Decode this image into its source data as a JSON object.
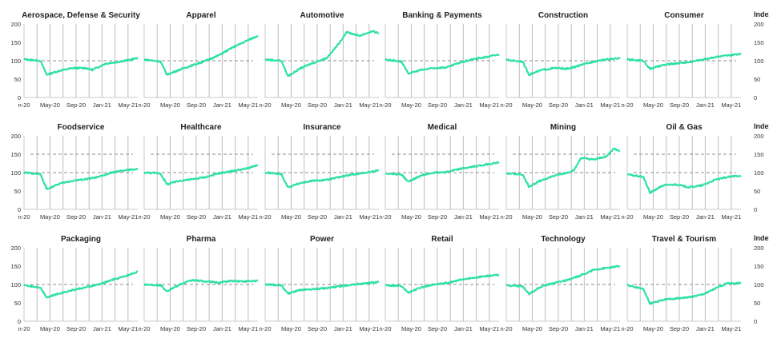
{
  "axis_labels": {
    "y_ticks": [
      "0",
      "50",
      "100",
      "150",
      "200"
    ],
    "x_ticks": [
      "n-20",
      "May-20",
      "Sep-20",
      "Jan-21",
      "May-21"
    ],
    "right_title": "Index"
  },
  "colors": {
    "line": "#2ee0a8",
    "grid": "#bdbdbd",
    "ref": "#8c8c8c",
    "axis": "#c8c8c8",
    "text": "#333333"
  },
  "chart_data": [
    {
      "type": "line",
      "title": "Aerospace, Defense & Security",
      "x": [
        "Jan-20",
        "Mar-20",
        "Apr-20",
        "Jun-20",
        "Aug-20",
        "Oct-20",
        "Nov-20",
        "Jan-21",
        "Mar-21",
        "May-21",
        "Jun-21"
      ],
      "y": [
        104,
        100,
        62,
        73,
        80,
        80,
        75,
        92,
        97,
        103,
        108
      ],
      "ylim": [
        0,
        200
      ],
      "reference_lines": [
        100
      ]
    },
    {
      "type": "line",
      "title": "Apparel",
      "x": [
        "Jan-20",
        "Mar-20",
        "Apr-20",
        "Jun-20",
        "Aug-20",
        "Oct-20",
        "Dec-20",
        "Feb-21",
        "Apr-21",
        "Jun-21"
      ],
      "y": [
        103,
        98,
        62,
        76,
        88,
        100,
        115,
        135,
        152,
        168
      ],
      "ylim": [
        0,
        200
      ],
      "reference_lines": [
        100
      ]
    },
    {
      "type": "line",
      "title": "Automotive",
      "x": [
        "Jan-20",
        "Mar-20",
        "Apr-20",
        "Jun-20",
        "Aug-20",
        "Oct-20",
        "Dec-20",
        "Jan-21",
        "Mar-21",
        "May-21",
        "Jun-21"
      ],
      "y": [
        103,
        100,
        58,
        80,
        95,
        108,
        150,
        178,
        168,
        180,
        175
      ],
      "ylim": [
        0,
        200
      ],
      "reference_lines": [
        100
      ]
    },
    {
      "type": "line",
      "title": "Banking & Payments",
      "x": [
        "Jan-20",
        "Mar-20",
        "Apr-20",
        "Jun-20",
        "Aug-20",
        "Oct-20",
        "Dec-20",
        "Feb-21",
        "Apr-21",
        "Jun-21"
      ],
      "y": [
        103,
        98,
        65,
        75,
        80,
        82,
        95,
        104,
        110,
        117
      ],
      "ylim": [
        0,
        200
      ],
      "reference_lines": [
        100
      ]
    },
    {
      "type": "line",
      "title": "Construction",
      "x": [
        "Jan-20",
        "Mar-20",
        "Apr-20",
        "Jun-20",
        "Aug-20",
        "Oct-20",
        "Dec-20",
        "Feb-21",
        "Apr-21",
        "Jun-21"
      ],
      "y": [
        102,
        98,
        62,
        75,
        80,
        78,
        88,
        98,
        104,
        106
      ],
      "ylim": [
        0,
        200
      ],
      "reference_lines": [
        100
      ]
    },
    {
      "type": "line",
      "title": "Consumer",
      "x": [
        "Jan-20",
        "Mar-20",
        "Apr-20",
        "Jun-20",
        "Aug-20",
        "Oct-20",
        "Dec-20",
        "Feb-21",
        "Apr-21",
        "Jun-21"
      ],
      "y": [
        103,
        100,
        78,
        88,
        93,
        96,
        103,
        110,
        114,
        119
      ],
      "ylim": [
        0,
        200
      ],
      "reference_lines": [
        100
      ]
    },
    {
      "type": "line",
      "title": "Foodservice",
      "x": [
        "Jan-20",
        "Mar-20",
        "Apr-20",
        "Jun-20",
        "Aug-20",
        "Oct-20",
        "Dec-20",
        "Feb-21",
        "Apr-21",
        "Jun-21"
      ],
      "y": [
        100,
        96,
        55,
        70,
        78,
        82,
        88,
        100,
        106,
        110
      ],
      "ylim": [
        0,
        200
      ],
      "reference_lines": [
        100,
        150
      ]
    },
    {
      "type": "line",
      "title": "Healthcare",
      "x": [
        "Jan-20",
        "Mar-20",
        "Apr-20",
        "Jun-20",
        "Aug-20",
        "Oct-20",
        "Dec-20",
        "Feb-21",
        "Apr-21",
        "Jun-21"
      ],
      "y": [
        100,
        98,
        68,
        78,
        82,
        88,
        98,
        104,
        110,
        120
      ],
      "ylim": [
        0,
        200
      ],
      "reference_lines": [
        100,
        150
      ]
    },
    {
      "type": "line",
      "title": "Insurance",
      "x": [
        "Jan-20",
        "Mar-20",
        "Apr-20",
        "Jun-20",
        "Aug-20",
        "Oct-20",
        "Dec-20",
        "Feb-21",
        "Apr-21",
        "Jun-21"
      ],
      "y": [
        100,
        96,
        60,
        72,
        78,
        80,
        88,
        95,
        100,
        106
      ],
      "ylim": [
        0,
        200
      ],
      "reference_lines": [
        100,
        150
      ]
    },
    {
      "type": "line",
      "title": "Medical",
      "x": [
        "Jan-20",
        "Mar-20",
        "Apr-20",
        "Jun-20",
        "Aug-20",
        "Oct-20",
        "Dec-20",
        "Feb-21",
        "Apr-21",
        "Jun-21"
      ],
      "y": [
        98,
        95,
        75,
        92,
        100,
        102,
        110,
        116,
        122,
        128
      ],
      "ylim": [
        0,
        200
      ],
      "reference_lines": [
        100,
        150
      ]
    },
    {
      "type": "line",
      "title": "Mining",
      "x": [
        "Jan-20",
        "Mar-20",
        "Apr-20",
        "Jun-20",
        "Aug-20",
        "Oct-20",
        "Nov-20",
        "Dec-20",
        "Feb-21",
        "Apr-21",
        "May-21",
        "Jun-21"
      ],
      "y": [
        98,
        95,
        62,
        80,
        92,
        100,
        108,
        140,
        135,
        145,
        165,
        160
      ],
      "ylim": [
        0,
        200
      ],
      "reference_lines": [
        100,
        150
      ]
    },
    {
      "type": "line",
      "title": "Oil & Gas",
      "x": [
        "Jan-20",
        "Mar-20",
        "Apr-20",
        "Jun-20",
        "Aug-20",
        "Oct-20",
        "Dec-20",
        "Feb-21",
        "Apr-21",
        "Jun-21"
      ],
      "y": [
        95,
        88,
        45,
        65,
        68,
        60,
        65,
        80,
        88,
        92
      ],
      "ylim": [
        0,
        200
      ],
      "reference_lines": [
        100,
        150
      ]
    },
    {
      "type": "line",
      "title": "Packaging",
      "x": [
        "Jan-20",
        "Mar-20",
        "Apr-20",
        "Jun-20",
        "Aug-20",
        "Oct-20",
        "Dec-20",
        "Feb-21",
        "Apr-21",
        "Jun-21"
      ],
      "y": [
        98,
        92,
        65,
        76,
        85,
        92,
        100,
        112,
        122,
        135
      ],
      "ylim": [
        0,
        200
      ],
      "reference_lines": [
        100
      ]
    },
    {
      "type": "line",
      "title": "Pharma",
      "x": [
        "Jan-20",
        "Mar-20",
        "Apr-20",
        "Jun-20",
        "Aug-20",
        "Oct-20",
        "Dec-20",
        "Feb-21",
        "Apr-21",
        "Jun-21"
      ],
      "y": [
        100,
        98,
        82,
        100,
        112,
        108,
        105,
        110,
        108,
        110
      ],
      "ylim": [
        0,
        200
      ],
      "reference_lines": [
        100
      ]
    },
    {
      "type": "line",
      "title": "Power",
      "x": [
        "Jan-20",
        "Mar-20",
        "Apr-20",
        "Jun-20",
        "Aug-20",
        "Oct-20",
        "Dec-20",
        "Feb-21",
        "Apr-21",
        "Jun-21"
      ],
      "y": [
        100,
        98,
        75,
        85,
        88,
        90,
        95,
        100,
        103,
        107
      ],
      "ylim": [
        0,
        200
      ],
      "reference_lines": [
        100
      ]
    },
    {
      "type": "line",
      "title": "Retail",
      "x": [
        "Jan-20",
        "Mar-20",
        "Apr-20",
        "Jun-20",
        "Aug-20",
        "Oct-20",
        "Dec-20",
        "Feb-21",
        "Apr-21",
        "Jun-21"
      ],
      "y": [
        98,
        96,
        78,
        92,
        100,
        104,
        112,
        118,
        123,
        126
      ],
      "ylim": [
        0,
        200
      ],
      "reference_lines": [
        100
      ]
    },
    {
      "type": "line",
      "title": "Technology",
      "x": [
        "Jan-20",
        "Mar-20",
        "Apr-20",
        "Jun-20",
        "Aug-20",
        "Oct-20",
        "Dec-20",
        "Feb-21",
        "Apr-21",
        "Jun-21"
      ],
      "y": [
        98,
        95,
        75,
        95,
        105,
        112,
        125,
        140,
        145,
        150
      ],
      "ylim": [
        0,
        200
      ],
      "reference_lines": [
        100
      ]
    },
    {
      "type": "line",
      "title": "Travel & Tourism",
      "x": [
        "Jan-20",
        "Mar-20",
        "Apr-20",
        "Jun-20",
        "Aug-20",
        "Oct-20",
        "Dec-20",
        "Feb-21",
        "Apr-21",
        "May-21",
        "Jun-21"
      ],
      "y": [
        98,
        88,
        48,
        58,
        62,
        65,
        72,
        88,
        105,
        102,
        105
      ],
      "ylim": [
        0,
        200
      ],
      "reference_lines": [
        100
      ]
    }
  ]
}
